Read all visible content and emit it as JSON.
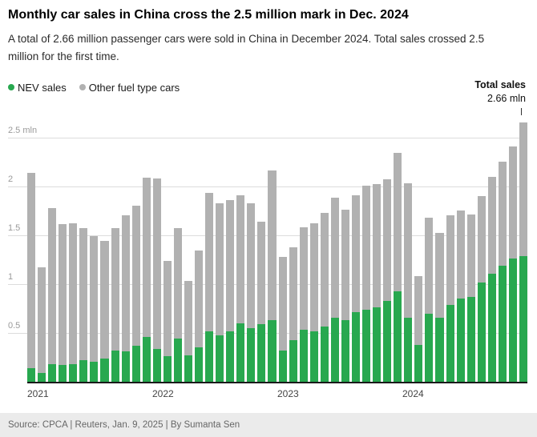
{
  "header": {
    "title": "Monthly car sales in China cross the 2.5 million mark in Dec. 2024",
    "subtitle": "A total of 2.66 million passenger cars were sold in China in December 2024. Total sales crossed 2.5 million for the first time."
  },
  "legend": {
    "nev_label": "NEV sales",
    "other_label": "Other fuel type cars"
  },
  "annotation": {
    "label": "Total sales",
    "value": "2.66 mln"
  },
  "footer": {
    "source": "Source: CPCA | Reuters, Jan. 9, 2025 | By Sumanta Sen"
  },
  "colors": {
    "nev": "#28a84f",
    "other": "#b1b1b1",
    "grid": "#dcdcdc",
    "axis": "#1a1a1a"
  },
  "chart_data": {
    "type": "bar",
    "stacked": true,
    "title": "Monthly car sales in China cross the 2.5 million mark in Dec. 2024",
    "unit": "mln vehicles",
    "ylim": [
      0,
      2.7
    ],
    "grid": true,
    "legend_position": "top-left",
    "months": [
      "2021-01",
      "2021-02",
      "2021-03",
      "2021-04",
      "2021-05",
      "2021-06",
      "2021-07",
      "2021-08",
      "2021-09",
      "2021-10",
      "2021-11",
      "2021-12",
      "2022-01",
      "2022-02",
      "2022-03",
      "2022-04",
      "2022-05",
      "2022-06",
      "2022-07",
      "2022-08",
      "2022-09",
      "2022-10",
      "2022-11",
      "2022-12",
      "2023-01",
      "2023-02",
      "2023-03",
      "2023-04",
      "2023-05",
      "2023-06",
      "2023-07",
      "2023-08",
      "2023-09",
      "2023-10",
      "2023-11",
      "2023-12",
      "2024-01",
      "2024-02",
      "2024-03",
      "2024-04",
      "2024-05",
      "2024-06",
      "2024-07",
      "2024-08",
      "2024-09",
      "2024-10",
      "2024-11",
      "2024-12"
    ],
    "series": [
      {
        "name": "NEV sales",
        "color": "#28a84f",
        "values": [
          0.15,
          0.1,
          0.19,
          0.18,
          0.19,
          0.23,
          0.22,
          0.25,
          0.33,
          0.32,
          0.38,
          0.47,
          0.35,
          0.27,
          0.45,
          0.28,
          0.36,
          0.53,
          0.49,
          0.53,
          0.61,
          0.56,
          0.6,
          0.64,
          0.33,
          0.44,
          0.54,
          0.53,
          0.58,
          0.67,
          0.64,
          0.72,
          0.75,
          0.77,
          0.84,
          0.94,
          0.67,
          0.39,
          0.71,
          0.67,
          0.8,
          0.86,
          0.88,
          1.03,
          1.12,
          1.2,
          1.27,
          1.3
        ]
      },
      {
        "name": "Other fuel type cars",
        "color": "#b1b1b1",
        "values": [
          2.0,
          1.08,
          1.6,
          1.44,
          1.44,
          1.35,
          1.28,
          1.2,
          1.25,
          1.39,
          1.43,
          1.63,
          1.74,
          0.98,
          1.13,
          0.76,
          0.99,
          1.41,
          1.35,
          1.34,
          1.31,
          1.28,
          1.05,
          1.53,
          0.96,
          0.95,
          1.05,
          1.1,
          1.16,
          1.22,
          1.13,
          1.2,
          1.27,
          1.26,
          1.24,
          1.41,
          1.37,
          0.7,
          0.98,
          0.86,
          0.91,
          0.9,
          0.84,
          0.88,
          0.99,
          1.06,
          1.15,
          1.36
        ]
      }
    ],
    "totals": [
      2.15,
      1.18,
      1.79,
      1.62,
      1.63,
      1.58,
      1.5,
      1.45,
      1.58,
      1.71,
      1.81,
      2.1,
      2.09,
      1.25,
      1.58,
      1.04,
      1.35,
      1.94,
      1.84,
      1.87,
      1.92,
      1.84,
      1.65,
      2.17,
      1.29,
      1.39,
      1.59,
      1.63,
      1.74,
      1.89,
      1.77,
      1.92,
      2.02,
      2.03,
      2.08,
      2.35,
      2.04,
      1.09,
      1.69,
      1.53,
      1.71,
      1.76,
      1.72,
      1.91,
      2.11,
      2.26,
      2.42,
      2.66
    ],
    "y_ticks": [
      {
        "value": 0.5,
        "label": "0.5"
      },
      {
        "value": 1,
        "label": "1"
      },
      {
        "value": 1.5,
        "label": "1.5"
      },
      {
        "value": 2,
        "label": "2"
      },
      {
        "value": 2.5,
        "label": "2.5 mln"
      }
    ],
    "x_ticks": [
      {
        "label": "2021",
        "month_index": 0
      },
      {
        "label": "2022",
        "month_index": 12
      },
      {
        "label": "2023",
        "month_index": 24
      },
      {
        "label": "2024",
        "month_index": 36
      }
    ]
  }
}
